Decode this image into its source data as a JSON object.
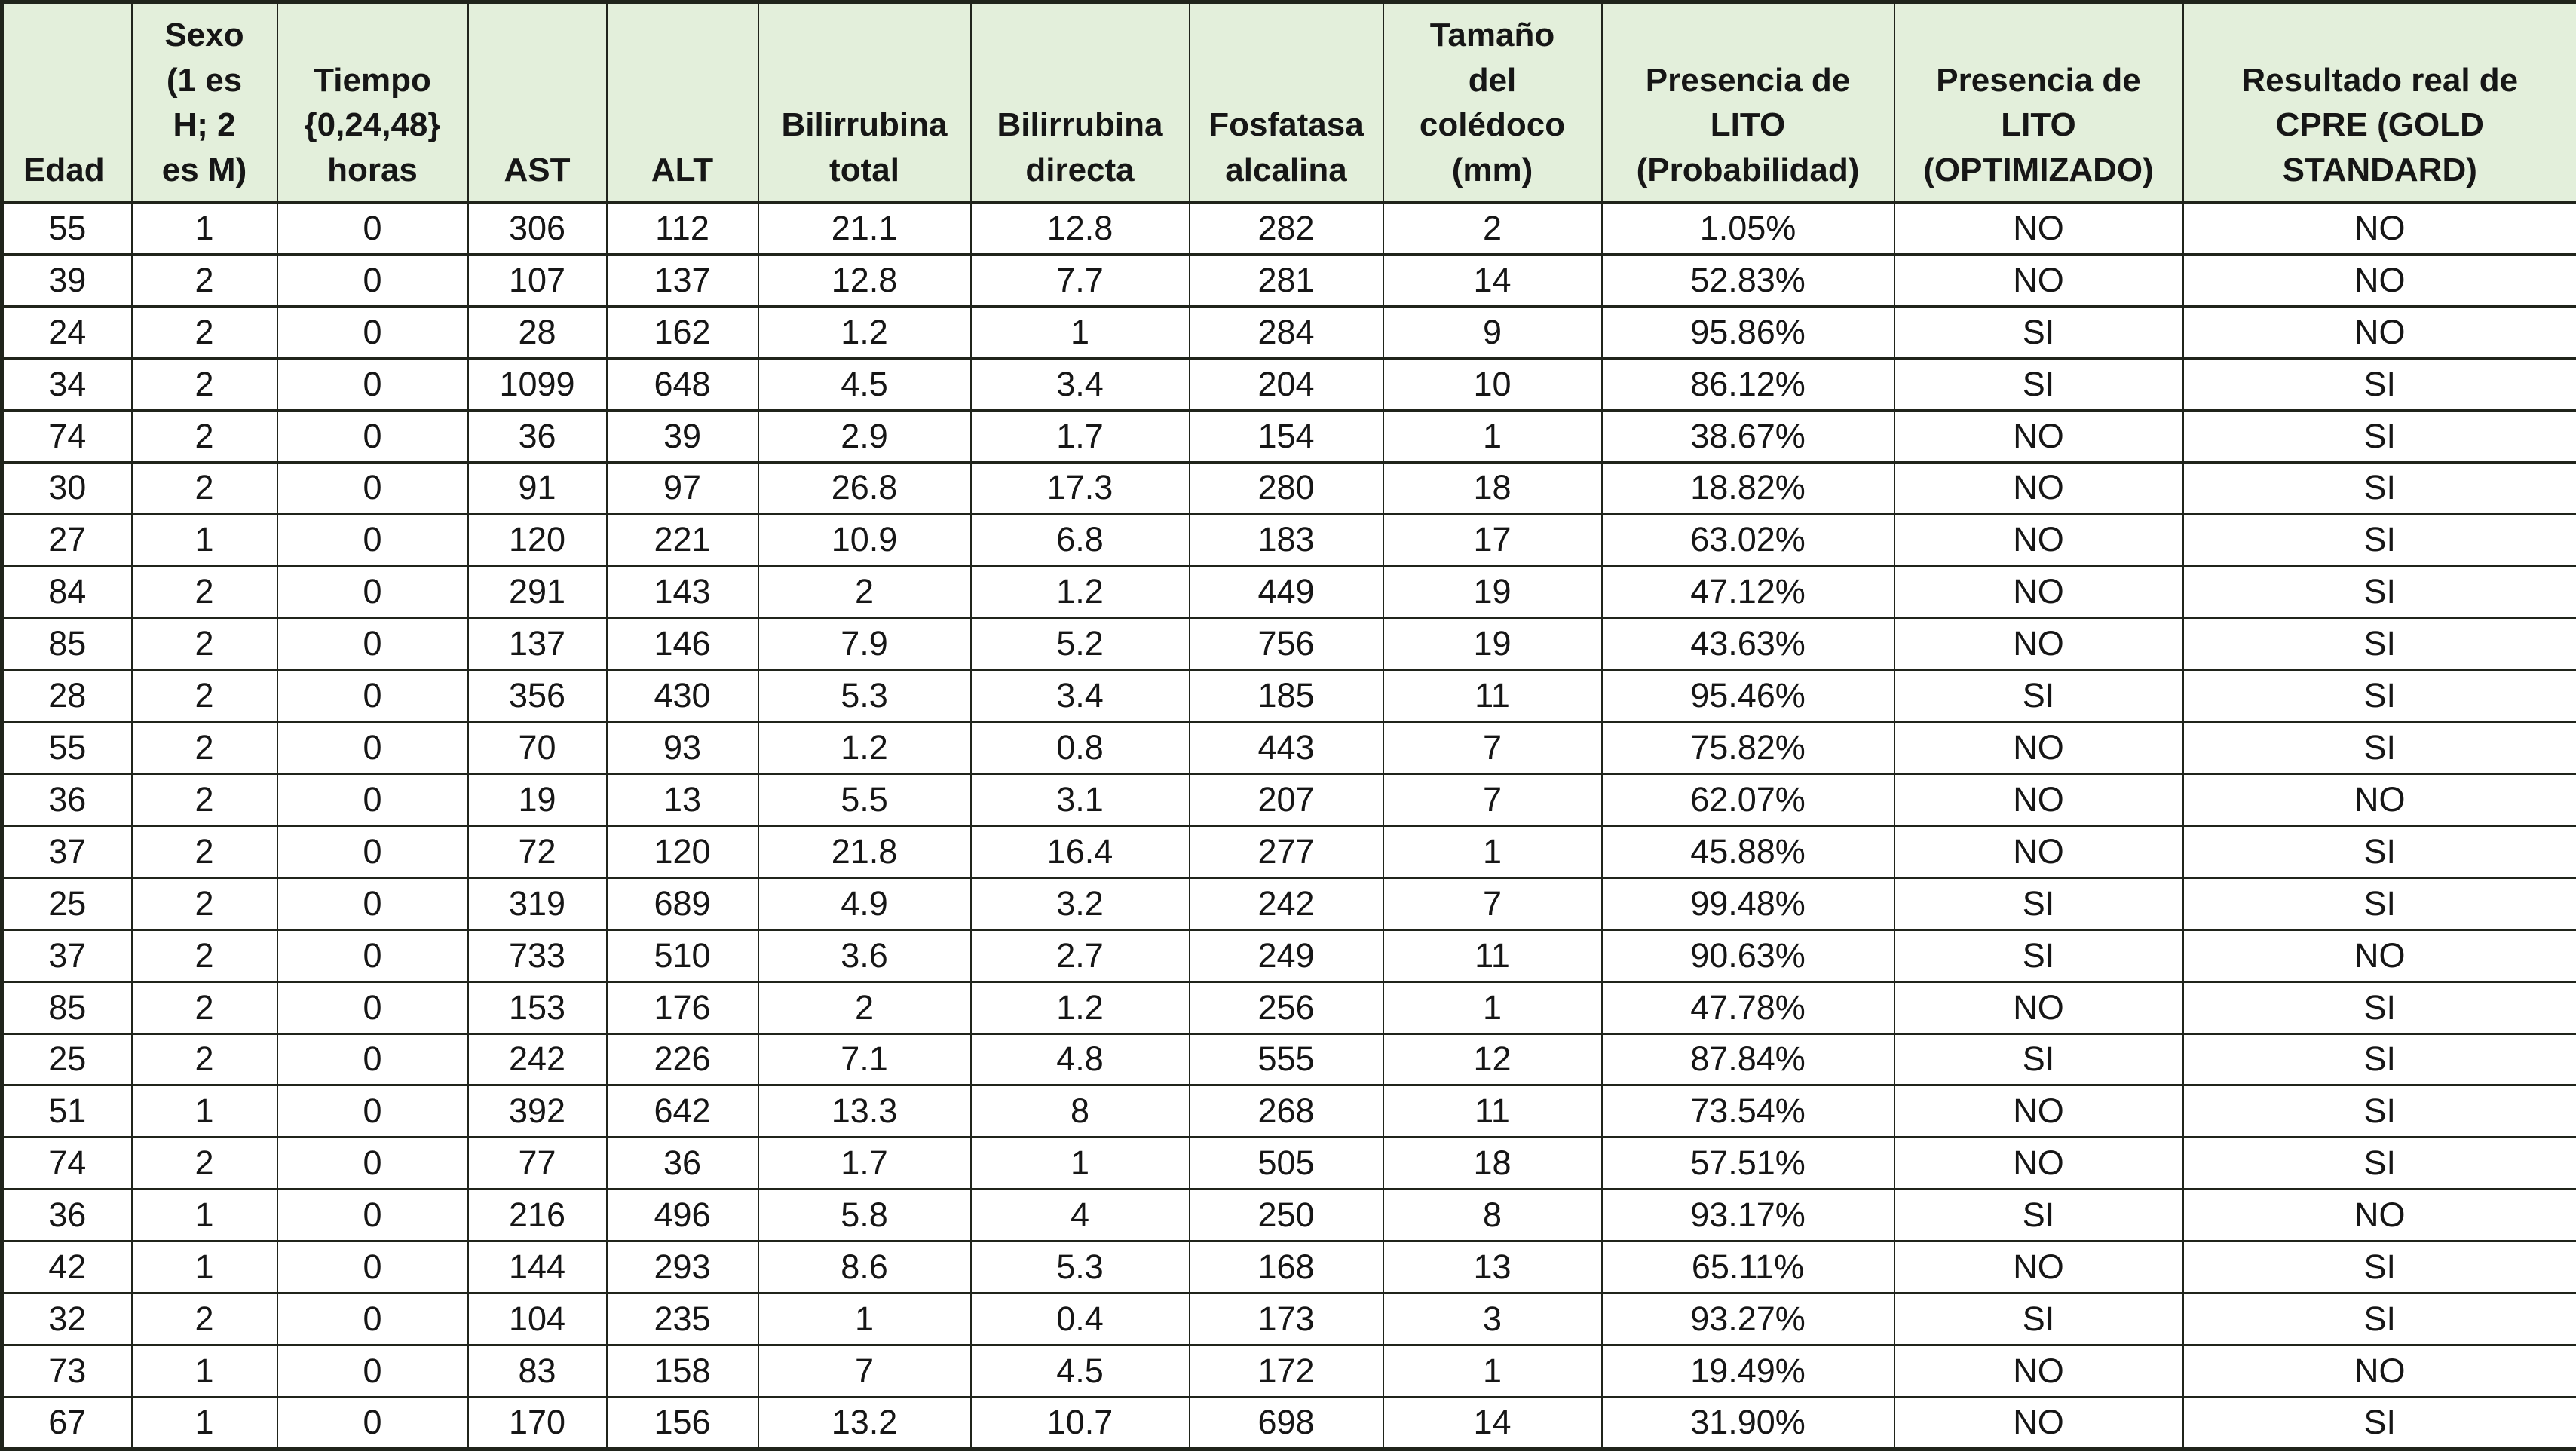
{
  "table": {
    "columns": [
      "Edad",
      "Sexo\n(1 es\nH; 2\nes M)",
      "Tiempo\n{0,24,48}\nhoras",
      "AST",
      "ALT",
      "Bilirrubina\ntotal",
      "Bilirrubina\ndirecta",
      "Fosfatasa\nalcalina",
      "Tamaño\ndel\ncolédoco\n(mm)",
      "Presencia de\nLITO\n(Probabilidad)",
      "Presencia de\nLITO\n(OPTIMIZADO)",
      "Resultado real de\nCPRE (GOLD\nSTANDARD)"
    ],
    "rows": [
      [
        "55",
        "1",
        "0",
        "306",
        "112",
        "21.1",
        "12.8",
        "282",
        "2",
        "1.05%",
        "NO",
        "NO"
      ],
      [
        "39",
        "2",
        "0",
        "107",
        "137",
        "12.8",
        "7.7",
        "281",
        "14",
        "52.83%",
        "NO",
        "NO"
      ],
      [
        "24",
        "2",
        "0",
        "28",
        "162",
        "1.2",
        "1",
        "284",
        "9",
        "95.86%",
        "SI",
        "NO"
      ],
      [
        "34",
        "2",
        "0",
        "1099",
        "648",
        "4.5",
        "3.4",
        "204",
        "10",
        "86.12%",
        "SI",
        "SI"
      ],
      [
        "74",
        "2",
        "0",
        "36",
        "39",
        "2.9",
        "1.7",
        "154",
        "1",
        "38.67%",
        "NO",
        "SI"
      ],
      [
        "30",
        "2",
        "0",
        "91",
        "97",
        "26.8",
        "17.3",
        "280",
        "18",
        "18.82%",
        "NO",
        "SI"
      ],
      [
        "27",
        "1",
        "0",
        "120",
        "221",
        "10.9",
        "6.8",
        "183",
        "17",
        "63.02%",
        "NO",
        "SI"
      ],
      [
        "84",
        "2",
        "0",
        "291",
        "143",
        "2",
        "1.2",
        "449",
        "19",
        "47.12%",
        "NO",
        "SI"
      ],
      [
        "85",
        "2",
        "0",
        "137",
        "146",
        "7.9",
        "5.2",
        "756",
        "19",
        "43.63%",
        "NO",
        "SI"
      ],
      [
        "28",
        "2",
        "0",
        "356",
        "430",
        "5.3",
        "3.4",
        "185",
        "11",
        "95.46%",
        "SI",
        "SI"
      ],
      [
        "55",
        "2",
        "0",
        "70",
        "93",
        "1.2",
        "0.8",
        "443",
        "7",
        "75.82%",
        "NO",
        "SI"
      ],
      [
        "36",
        "2",
        "0",
        "19",
        "13",
        "5.5",
        "3.1",
        "207",
        "7",
        "62.07%",
        "NO",
        "NO"
      ],
      [
        "37",
        "2",
        "0",
        "72",
        "120",
        "21.8",
        "16.4",
        "277",
        "1",
        "45.88%",
        "NO",
        "SI"
      ],
      [
        "25",
        "2",
        "0",
        "319",
        "689",
        "4.9",
        "3.2",
        "242",
        "7",
        "99.48%",
        "SI",
        "SI"
      ],
      [
        "37",
        "2",
        "0",
        "733",
        "510",
        "3.6",
        "2.7",
        "249",
        "11",
        "90.63%",
        "SI",
        "NO"
      ],
      [
        "85",
        "2",
        "0",
        "153",
        "176",
        "2",
        "1.2",
        "256",
        "1",
        "47.78%",
        "NO",
        "SI"
      ],
      [
        "25",
        "2",
        "0",
        "242",
        "226",
        "7.1",
        "4.8",
        "555",
        "12",
        "87.84%",
        "SI",
        "SI"
      ],
      [
        "51",
        "1",
        "0",
        "392",
        "642",
        "13.3",
        "8",
        "268",
        "11",
        "73.54%",
        "NO",
        "SI"
      ],
      [
        "74",
        "2",
        "0",
        "77",
        "36",
        "1.7",
        "1",
        "505",
        "18",
        "57.51%",
        "NO",
        "SI"
      ],
      [
        "36",
        "1",
        "0",
        "216",
        "496",
        "5.8",
        "4",
        "250",
        "8",
        "93.17%",
        "SI",
        "NO"
      ],
      [
        "42",
        "1",
        "0",
        "144",
        "293",
        "8.6",
        "5.3",
        "168",
        "13",
        "65.11%",
        "NO",
        "SI"
      ],
      [
        "32",
        "2",
        "0",
        "104",
        "235",
        "1",
        "0.4",
        "173",
        "3",
        "93.27%",
        "SI",
        "SI"
      ],
      [
        "73",
        "1",
        "0",
        "83",
        "158",
        "7",
        "4.5",
        "172",
        "1",
        "19.49%",
        "NO",
        "NO"
      ],
      [
        "67",
        "1",
        "0",
        "170",
        "156",
        "13.2",
        "10.7",
        "698",
        "14",
        "31.90%",
        "NO",
        "SI"
      ]
    ]
  },
  "colors": {
    "header_background": "#e3efdb",
    "border": "#20241b",
    "text": "#161616",
    "row_background": "#ffffff"
  }
}
